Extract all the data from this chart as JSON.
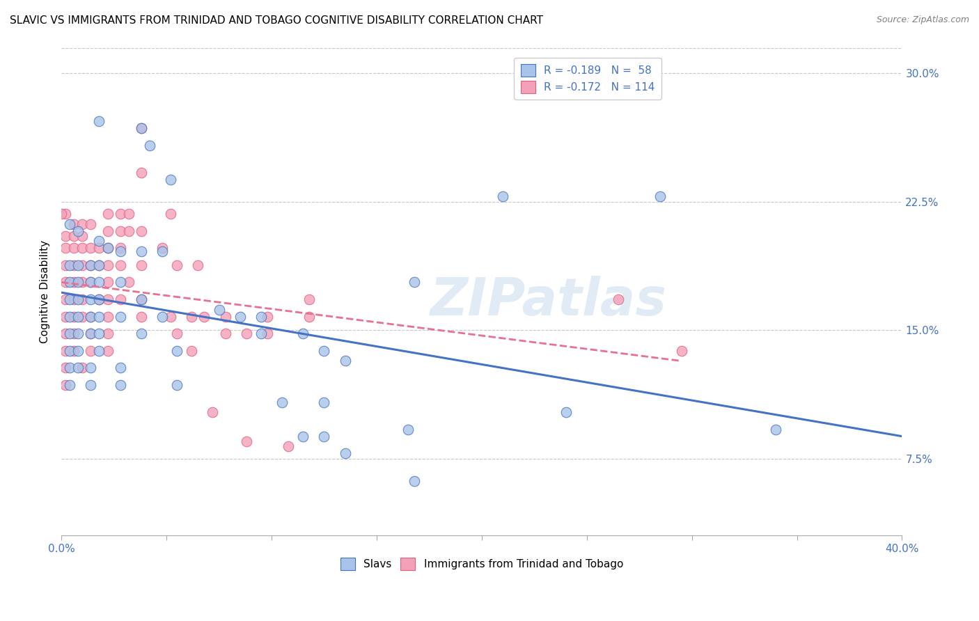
{
  "title": "SLAVIC VS IMMIGRANTS FROM TRINIDAD AND TOBAGO COGNITIVE DISABILITY CORRELATION CHART",
  "source": "Source: ZipAtlas.com",
  "ylabel": "Cognitive Disability",
  "ytick_labels": [
    "7.5%",
    "15.0%",
    "22.5%",
    "30.0%"
  ],
  "ytick_values": [
    0.075,
    0.15,
    0.225,
    0.3
  ],
  "xmin": 0.0,
  "xmax": 0.4,
  "ymin": 0.03,
  "ymax": 0.315,
  "legend1_r": "-0.189",
  "legend1_n": "58",
  "legend2_r": "-0.172",
  "legend2_n": "114",
  "slavs_color_fill": "#a8c4e8",
  "slavs_color_edge": "#4472c4",
  "tt_color_fill": "#f4a0b8",
  "tt_color_edge": "#e06080",
  "bottom_legend_slavs": "Slavs",
  "bottom_legend_tt": "Immigrants from Trinidad and Tobago",
  "watermark": "ZIPatlas",
  "slavs_scatter": [
    [
      0.018,
      0.272
    ],
    [
      0.038,
      0.268
    ],
    [
      0.042,
      0.258
    ],
    [
      0.052,
      0.238
    ],
    [
      0.004,
      0.212
    ],
    [
      0.008,
      0.208
    ],
    [
      0.018,
      0.202
    ],
    [
      0.022,
      0.198
    ],
    [
      0.028,
      0.196
    ],
    [
      0.038,
      0.196
    ],
    [
      0.048,
      0.196
    ],
    [
      0.004,
      0.188
    ],
    [
      0.008,
      0.188
    ],
    [
      0.014,
      0.188
    ],
    [
      0.018,
      0.188
    ],
    [
      0.004,
      0.178
    ],
    [
      0.008,
      0.178
    ],
    [
      0.014,
      0.178
    ],
    [
      0.018,
      0.178
    ],
    [
      0.028,
      0.178
    ],
    [
      0.004,
      0.168
    ],
    [
      0.008,
      0.168
    ],
    [
      0.014,
      0.168
    ],
    [
      0.018,
      0.168
    ],
    [
      0.038,
      0.168
    ],
    [
      0.004,
      0.158
    ],
    [
      0.008,
      0.158
    ],
    [
      0.014,
      0.158
    ],
    [
      0.018,
      0.158
    ],
    [
      0.028,
      0.158
    ],
    [
      0.048,
      0.158
    ],
    [
      0.004,
      0.148
    ],
    [
      0.008,
      0.148
    ],
    [
      0.014,
      0.148
    ],
    [
      0.018,
      0.148
    ],
    [
      0.038,
      0.148
    ],
    [
      0.004,
      0.138
    ],
    [
      0.008,
      0.138
    ],
    [
      0.018,
      0.138
    ],
    [
      0.055,
      0.138
    ],
    [
      0.004,
      0.128
    ],
    [
      0.008,
      0.128
    ],
    [
      0.014,
      0.128
    ],
    [
      0.028,
      0.128
    ],
    [
      0.004,
      0.118
    ],
    [
      0.014,
      0.118
    ],
    [
      0.028,
      0.118
    ],
    [
      0.055,
      0.118
    ],
    [
      0.075,
      0.162
    ],
    [
      0.085,
      0.158
    ],
    [
      0.095,
      0.158
    ],
    [
      0.095,
      0.148
    ],
    [
      0.115,
      0.148
    ],
    [
      0.125,
      0.138
    ],
    [
      0.135,
      0.132
    ],
    [
      0.168,
      0.178
    ],
    [
      0.21,
      0.228
    ],
    [
      0.285,
      0.228
    ],
    [
      0.105,
      0.108
    ],
    [
      0.125,
      0.108
    ],
    [
      0.115,
      0.088
    ],
    [
      0.125,
      0.088
    ],
    [
      0.165,
      0.092
    ],
    [
      0.135,
      0.078
    ],
    [
      0.24,
      0.102
    ],
    [
      0.34,
      0.092
    ],
    [
      0.168,
      0.062
    ]
  ],
  "tt_scatter": [
    [
      0.002,
      0.218
    ],
    [
      0.006,
      0.212
    ],
    [
      0.01,
      0.212
    ],
    [
      0.014,
      0.212
    ],
    [
      0.002,
      0.205
    ],
    [
      0.006,
      0.205
    ],
    [
      0.01,
      0.205
    ],
    [
      0.002,
      0.198
    ],
    [
      0.006,
      0.198
    ],
    [
      0.01,
      0.198
    ],
    [
      0.014,
      0.198
    ],
    [
      0.018,
      0.198
    ],
    [
      0.002,
      0.188
    ],
    [
      0.006,
      0.188
    ],
    [
      0.01,
      0.188
    ],
    [
      0.014,
      0.188
    ],
    [
      0.018,
      0.188
    ],
    [
      0.002,
      0.178
    ],
    [
      0.006,
      0.178
    ],
    [
      0.01,
      0.178
    ],
    [
      0.014,
      0.178
    ],
    [
      0.002,
      0.168
    ],
    [
      0.006,
      0.168
    ],
    [
      0.01,
      0.168
    ],
    [
      0.018,
      0.168
    ],
    [
      0.002,
      0.158
    ],
    [
      0.006,
      0.158
    ],
    [
      0.01,
      0.158
    ],
    [
      0.014,
      0.158
    ],
    [
      0.002,
      0.148
    ],
    [
      0.006,
      0.148
    ],
    [
      0.014,
      0.148
    ],
    [
      0.002,
      0.138
    ],
    [
      0.006,
      0.138
    ],
    [
      0.014,
      0.138
    ],
    [
      0.002,
      0.128
    ],
    [
      0.01,
      0.128
    ],
    [
      0.002,
      0.118
    ],
    [
      0.022,
      0.218
    ],
    [
      0.028,
      0.218
    ],
    [
      0.032,
      0.218
    ],
    [
      0.022,
      0.208
    ],
    [
      0.028,
      0.208
    ],
    [
      0.032,
      0.208
    ],
    [
      0.038,
      0.208
    ],
    [
      0.022,
      0.198
    ],
    [
      0.028,
      0.198
    ],
    [
      0.022,
      0.188
    ],
    [
      0.028,
      0.188
    ],
    [
      0.038,
      0.188
    ],
    [
      0.022,
      0.178
    ],
    [
      0.032,
      0.178
    ],
    [
      0.022,
      0.168
    ],
    [
      0.028,
      0.168
    ],
    [
      0.038,
      0.168
    ],
    [
      0.022,
      0.158
    ],
    [
      0.038,
      0.158
    ],
    [
      0.022,
      0.148
    ],
    [
      0.022,
      0.138
    ],
    [
      0.048,
      0.198
    ],
    [
      0.055,
      0.188
    ],
    [
      0.065,
      0.188
    ],
    [
      0.052,
      0.158
    ],
    [
      0.062,
      0.158
    ],
    [
      0.068,
      0.158
    ],
    [
      0.055,
      0.148
    ],
    [
      0.062,
      0.138
    ],
    [
      0.038,
      0.242
    ],
    [
      0.052,
      0.218
    ],
    [
      0.038,
      0.268
    ],
    [
      0.0,
      0.218
    ],
    [
      0.072,
      0.102
    ],
    [
      0.088,
      0.085
    ],
    [
      0.108,
      0.082
    ],
    [
      0.078,
      0.158
    ],
    [
      0.078,
      0.148
    ],
    [
      0.088,
      0.148
    ],
    [
      0.098,
      0.148
    ],
    [
      0.098,
      0.158
    ],
    [
      0.118,
      0.158
    ],
    [
      0.118,
      0.168
    ],
    [
      0.265,
      0.168
    ],
    [
      0.295,
      0.138
    ]
  ],
  "slavs_line_color": "#4472c4",
  "tt_line_color": "#e87090",
  "slavs_line_x": [
    0.0,
    0.4
  ],
  "slavs_line_y": [
    0.172,
    0.088
  ],
  "tt_line_x": [
    0.0,
    0.295
  ],
  "tt_line_y": [
    0.178,
    0.132
  ],
  "background_color": "#ffffff",
  "grid_color": "#c8c8c8"
}
